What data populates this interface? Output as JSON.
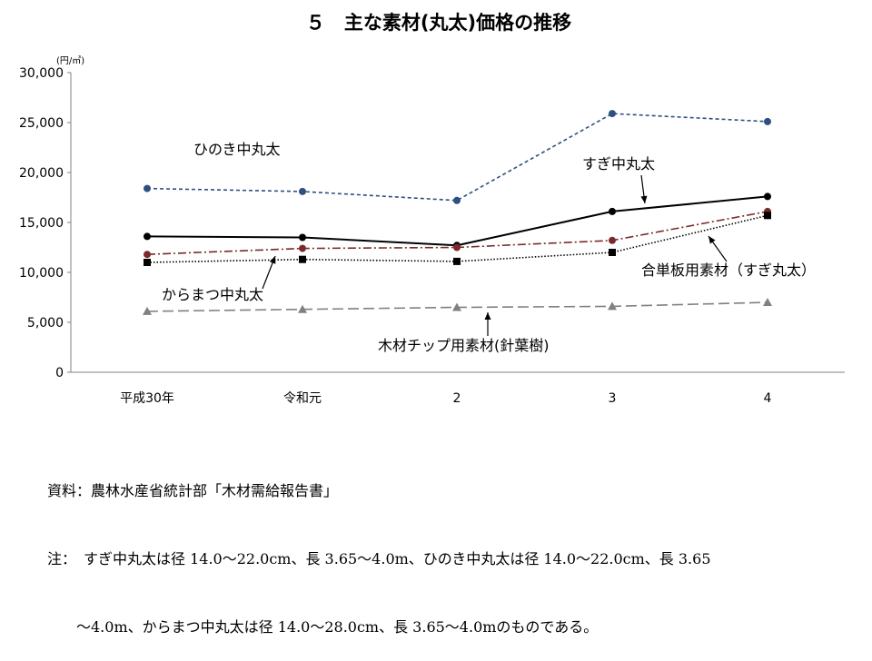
{
  "chart_data": {
    "type": "line",
    "title": "５　主な素材(丸太)価格の推移",
    "unit": "(円/㎥)",
    "categories": [
      "平成30年",
      "令和元",
      "2",
      "3",
      "4"
    ],
    "ylim": [
      0,
      30000
    ],
    "yticks": [
      "0",
      "5,000",
      "10,000",
      "15,000",
      "20,000",
      "25,000",
      "30,000"
    ],
    "grid": false,
    "series": [
      {
        "name": "ひのき中丸太",
        "values": [
          18400,
          18100,
          17200,
          25900,
          25100
        ],
        "color": "#2e4f7f",
        "dash": "4,3",
        "marker": "circle"
      },
      {
        "name": "すぎ中丸太",
        "values": [
          13600,
          13500,
          12700,
          16100,
          17600
        ],
        "color": "#000000",
        "dash": "",
        "marker": "circle"
      },
      {
        "name": "からまつ中丸太",
        "values": [
          11800,
          12400,
          12500,
          13200,
          16100
        ],
        "color": "#7a2a2a",
        "dash": "9,3,2,3",
        "marker": "circle"
      },
      {
        "name": "合単板用素材（すぎ丸太）",
        "values": [
          11000,
          11300,
          11100,
          12000,
          15700
        ],
        "color": "#000000",
        "dash": "1.5,2",
        "marker": "square"
      },
      {
        "name": "木材チップ用素材(針葉樹)",
        "values": [
          6100,
          6300,
          6500,
          6600,
          7000
        ],
        "color": "#808080",
        "dash": "12,5",
        "marker": "triangle"
      }
    ]
  },
  "notes": {
    "source": "資料：農林水産省統計部「木材需給報告書」",
    "note_line1": "注：　すぎ中丸太は径 14.0～22.0cm、長 3.65～4.0m、ひのき中丸太は径 14.0～22.0cm、長 3.65",
    "note_line2": "　　～4.0m、からまつ中丸太は径 14.0～28.0cm、長 3.65～4.0mのものである。"
  }
}
